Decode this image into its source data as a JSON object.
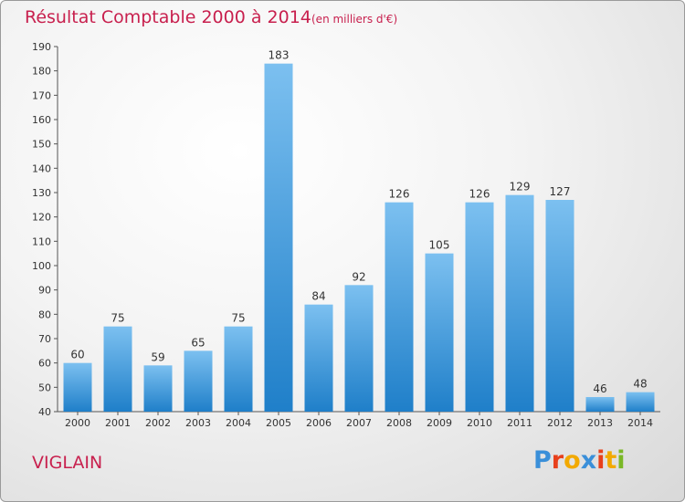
{
  "header": {
    "title": "Résultat Comptable 2000 à 2014",
    "subtitle": "(en milliers d'€)"
  },
  "footer": {
    "commune": "VIGLAIN",
    "logo_text": "Proxiti",
    "logo_colors": [
      "#3a8fd9",
      "#e8401c",
      "#f2a900",
      "#3a8fd9",
      "#e8401c",
      "#f2a900",
      "#7ab826"
    ]
  },
  "colors": {
    "accent": "#c8204e",
    "bar_light": "#7cc0f0",
    "bar_dark": "#1f7fc9"
  },
  "chart_data": {
    "type": "bar",
    "title": "Résultat Comptable 2000 à 2014",
    "categories": [
      "2000",
      "2001",
      "2002",
      "2003",
      "2004",
      "2005",
      "2006",
      "2007",
      "2008",
      "2009",
      "2010",
      "2011",
      "2012",
      "2013",
      "2014"
    ],
    "values": [
      60,
      75,
      59,
      65,
      75,
      183,
      84,
      92,
      126,
      105,
      126,
      129,
      127,
      46,
      48
    ],
    "ylim": [
      40,
      190
    ],
    "yticks": [
      40,
      50,
      60,
      70,
      80,
      90,
      100,
      110,
      120,
      130,
      140,
      150,
      160,
      170,
      180,
      190
    ],
    "xlabel": "",
    "ylabel": "",
    "grid": false,
    "legend": "none"
  }
}
